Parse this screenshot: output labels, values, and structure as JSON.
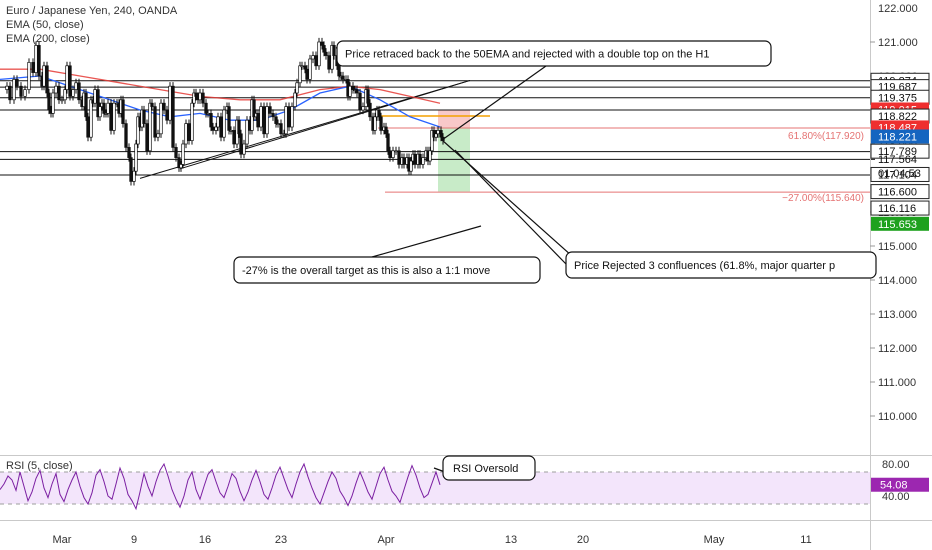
{
  "header": {
    "symbol": "Euro / Japanese Yen, 240, OANDA",
    "ema50": "EMA (50, close)",
    "ema200": "EMA (200, close)",
    "rsi": "RSI (5, close)"
  },
  "colors": {
    "ema50": "#2962ff",
    "ema200": "#e53935",
    "rsi_line": "#7b1fa2",
    "rsi_band": "#f3e5fb",
    "fib": "#e57373",
    "stop_zone": "#f8c9c9",
    "target_zone": "#c8ebc8",
    "entry": "#f4a100",
    "tag_red": "#ef2f2f",
    "tag_blue": "#1565c0",
    "tag_green": "#1ea11e",
    "tag_purple": "#9c27b0"
  },
  "chart_data": [
    {
      "type": "candlestick",
      "title": "Euro / Japanese Yen, 240, OANDA",
      "ylim": [
        109.1,
        122.2
      ],
      "y_ticks": [
        "122.000",
        "121.000",
        "120.000",
        "119.000",
        "118.000",
        "117.000",
        "116.000",
        "115.000",
        "114.000",
        "113.000",
        "112.000",
        "111.000",
        "110.000"
      ],
      "x_ticks": [
        "Mar",
        "9",
        "16",
        "23",
        "Apr",
        "13",
        "20",
        "May",
        "11"
      ],
      "price_path": [
        [
          0,
          119.6
        ],
        [
          7,
          119.7
        ],
        [
          10,
          119.3
        ],
        [
          14,
          119.9
        ],
        [
          17,
          119.7
        ],
        [
          21,
          119.4
        ],
        [
          25,
          119.6
        ],
        [
          29,
          120.4
        ],
        [
          33,
          120.1
        ],
        [
          36,
          120.9
        ],
        [
          39,
          120.0
        ],
        [
          42,
          119.7
        ],
        [
          44,
          120.3
        ],
        [
          47,
          119.5
        ],
        [
          49,
          119.0
        ],
        [
          51,
          118.9
        ],
        [
          53,
          119.5
        ],
        [
          56,
          119.7
        ],
        [
          59,
          119.3
        ],
        [
          62,
          119.3
        ],
        [
          65,
          119.6
        ],
        [
          67,
          120.3
        ],
        [
          70,
          119.4
        ],
        [
          73,
          119.6
        ],
        [
          76,
          119.8
        ],
        [
          79,
          119.3
        ],
        [
          82,
          119.1
        ],
        [
          84,
          119.5
        ],
        [
          86,
          118.8
        ],
        [
          88,
          118.2
        ],
        [
          91,
          119.3
        ],
        [
          93,
          119.2
        ],
        [
          95,
          119.6
        ],
        [
          98,
          118.8
        ],
        [
          100,
          119.1
        ],
        [
          102,
          119.2
        ],
        [
          104,
          118.9
        ],
        [
          106,
          118.9
        ],
        [
          108,
          119.2
        ],
        [
          111,
          118.4
        ],
        [
          114,
          119.2
        ],
        [
          117,
          119.2
        ],
        [
          119,
          118.9
        ],
        [
          121,
          119.3
        ],
        [
          123,
          118.6
        ],
        [
          126,
          117.9
        ],
        [
          129,
          117.6
        ],
        [
          131,
          116.9
        ],
        [
          134,
          117.2
        ],
        [
          136,
          118.0
        ],
        [
          138,
          118.8
        ],
        [
          140,
          118.5
        ],
        [
          142,
          119.0
        ],
        [
          144,
          118.6
        ],
        [
          147,
          117.8
        ],
        [
          150,
          119.2
        ],
        [
          152,
          119.1
        ],
        [
          155,
          118.2
        ],
        [
          158,
          118.3
        ],
        [
          161,
          119.2
        ],
        [
          164,
          119.0
        ],
        [
          167,
          118.7
        ],
        [
          170,
          119.7
        ],
        [
          173,
          117.9
        ],
        [
          176,
          117.6
        ],
        [
          179,
          117.3
        ],
        [
          181,
          117.4
        ],
        [
          183,
          118.0
        ],
        [
          186,
          118.6
        ],
        [
          189,
          118.1
        ],
        [
          192,
          119.2
        ],
        [
          194,
          119.5
        ],
        [
          196,
          119.4
        ],
        [
          198,
          119.3
        ],
        [
          200,
          119.5
        ],
        [
          203,
          119.2
        ],
        [
          206,
          118.9
        ],
        [
          208,
          118.9
        ],
        [
          211,
          118.5
        ],
        [
          213,
          118.4
        ],
        [
          216,
          118.5
        ],
        [
          218,
          118.8
        ],
        [
          221,
          118.2
        ],
        [
          224,
          119.0
        ],
        [
          227,
          119.1
        ],
        [
          229,
          118.4
        ],
        [
          231,
          118.4
        ],
        [
          234,
          118.0
        ],
        [
          237,
          118.7
        ],
        [
          239,
          118.3
        ],
        [
          241,
          117.7
        ],
        [
          244,
          118.0
        ],
        [
          247,
          118.7
        ],
        [
          250,
          118.4
        ],
        [
          252,
          119.3
        ],
        [
          254,
          118.8
        ],
        [
          256,
          118.9
        ],
        [
          258,
          118.5
        ],
        [
          261,
          119.1
        ],
        [
          264,
          118.3
        ],
        [
          267,
          119.1
        ],
        [
          270,
          118.9
        ],
        [
          273,
          118.8
        ],
        [
          276,
          118.6
        ],
        [
          278,
          118.6
        ],
        [
          281,
          118.3
        ],
        [
          284,
          118.3
        ],
        [
          286,
          119.1
        ],
        [
          289,
          118.5
        ],
        [
          292,
          119.1
        ],
        [
          295,
          119.5
        ],
        [
          297,
          119.8
        ],
        [
          300,
          120.3
        ],
        [
          302,
          120.3
        ],
        [
          305,
          120.2
        ],
        [
          307,
          119.9
        ],
        [
          310,
          120.5
        ],
        [
          313,
          120.6
        ],
        [
          316,
          120.3
        ],
        [
          319,
          121.0
        ],
        [
          322,
          120.9
        ],
        [
          324,
          120.7
        ],
        [
          326,
          120.6
        ],
        [
          329,
          120.2
        ],
        [
          332,
          120.9
        ],
        [
          334,
          120.6
        ],
        [
          337,
          120.3
        ],
        [
          339,
          120.0
        ],
        [
          341,
          120.0
        ],
        [
          343,
          119.9
        ],
        [
          346,
          119.9
        ],
        [
          348,
          119.4
        ],
        [
          350,
          119.7
        ],
        [
          353,
          119.6
        ],
        [
          355,
          119.6
        ],
        [
          357,
          119.5
        ],
        [
          360,
          119.0
        ],
        [
          363,
          119.1
        ],
        [
          366,
          119.6
        ],
        [
          368,
          119.2
        ],
        [
          370,
          118.8
        ],
        [
          373,
          118.4
        ],
        [
          375,
          118.8
        ],
        [
          377,
          119.0
        ],
        [
          379,
          118.8
        ],
        [
          381,
          118.4
        ],
        [
          384,
          118.5
        ],
        [
          386,
          118.3
        ],
        [
          388,
          117.8
        ],
        [
          390,
          117.6
        ],
        [
          393,
          117.8
        ],
        [
          396,
          117.8
        ],
        [
          399,
          117.4
        ],
        [
          402,
          117.6
        ],
        [
          404,
          117.4
        ],
        [
          407,
          117.6
        ],
        [
          409,
          117.2
        ],
        [
          411,
          117.5
        ],
        [
          413,
          117.7
        ],
        [
          415,
          117.4
        ],
        [
          418,
          117.7
        ],
        [
          420,
          117.4
        ],
        [
          423,
          117.6
        ],
        [
          426,
          117.8
        ],
        [
          428,
          117.5
        ],
        [
          430,
          117.8
        ],
        [
          432,
          118.4
        ],
        [
          434,
          118.2
        ],
        [
          436,
          118.3
        ],
        [
          438,
          118.4
        ],
        [
          441,
          118.2
        ],
        [
          443,
          118.1
        ]
      ],
      "ema50_path": [
        [
          0,
          119.9
        ],
        [
          40,
          120.0
        ],
        [
          70,
          119.7
        ],
        [
          110,
          119.3
        ],
        [
          140,
          119.0
        ],
        [
          170,
          118.8
        ],
        [
          200,
          118.9
        ],
        [
          230,
          118.7
        ],
        [
          260,
          118.7
        ],
        [
          290,
          119.0
        ],
        [
          320,
          119.5
        ],
        [
          350,
          119.7
        ],
        [
          380,
          119.3
        ],
        [
          410,
          118.8
        ],
        [
          440,
          118.5
        ]
      ],
      "ema200_path": [
        [
          0,
          120.2
        ],
        [
          40,
          120.2
        ],
        [
          80,
          120.0
        ],
        [
          120,
          119.8
        ],
        [
          160,
          119.6
        ],
        [
          200,
          119.4
        ],
        [
          240,
          119.3
        ],
        [
          280,
          119.3
        ],
        [
          320,
          119.6
        ],
        [
          350,
          119.7
        ],
        [
          380,
          119.6
        ],
        [
          410,
          119.4
        ],
        [
          440,
          119.2
        ]
      ],
      "support_resistance_lines": [
        119.874,
        119.687,
        119.375,
        119.015,
        117.789,
        117.564,
        117.104
      ],
      "last_price": "117.564",
      "countdown": "01:04:53",
      "fib_levels": [
        {
          "label": "61.80%(117.920)",
          "price": 118.487
        },
        {
          "label": "−27.00%(115.640)",
          "price": 116.6
        }
      ],
      "price_tags": [
        {
          "text": "119.874",
          "style": "plain",
          "price": 119.874
        },
        {
          "text": "119.687",
          "style": "plain",
          "price": 119.687
        },
        {
          "text": "119.375",
          "style": "plain",
          "price": 119.375
        },
        {
          "text": "119.015",
          "style": "red",
          "price": 119.015
        },
        {
          "text": "118.822",
          "style": "plain",
          "price": 118.822
        },
        {
          "text": "118.487",
          "style": "red",
          "price": 118.487
        },
        {
          "text": "118.221",
          "style": "blue",
          "price": 118.221
        },
        {
          "text": "117.789",
          "style": "plain",
          "price": 117.789
        },
        {
          "text": "117.104",
          "style": "plain",
          "price": 117.104
        },
        {
          "text": "116.600",
          "style": "plain",
          "price": 116.6
        },
        {
          "text": "116.116",
          "style": "plain",
          "price": 116.116
        },
        {
          "text": "115.653",
          "style": "green",
          "price": 115.653
        }
      ],
      "trade": {
        "entry": 118.822,
        "stop_top": 119.015,
        "stop_bottom": 118.487,
        "target_top": 118.487,
        "target_bottom": 116.6
      },
      "annotations": [
        "Price retraced back to the 50EMA and rejected with a double top on the H1",
        "Price Rejected 3 confluences (61.8%, major quarter p",
        "-27% is the overall target as this is also a 1:1 move"
      ]
    },
    {
      "type": "line",
      "title": "RSI (5, close)",
      "ylim": [
        20,
        90
      ],
      "y_ticks": [
        "80.00",
        "40.00"
      ],
      "band": [
        70,
        30
      ],
      "last_value": "54.08",
      "annotation": "RSI Oversold",
      "values": [
        48,
        55,
        65,
        60,
        47,
        70,
        52,
        34,
        45,
        62,
        72,
        50,
        38,
        55,
        68,
        42,
        33,
        48,
        60,
        70,
        52,
        38,
        30,
        44,
        66,
        73,
        58,
        40,
        36,
        55,
        75,
        62,
        42,
        34,
        24,
        45,
        68,
        52,
        40,
        58,
        72,
        80,
        65,
        48,
        36,
        26,
        40,
        60,
        70,
        48,
        36,
        52,
        67,
        73,
        58,
        44,
        38,
        52,
        68,
        62,
        46,
        34,
        45,
        60,
        72,
        58,
        42,
        36,
        50,
        66,
        76,
        62,
        48,
        38,
        55,
        70,
        80,
        64,
        50,
        38,
        30,
        44,
        58,
        70,
        62,
        46,
        38,
        28,
        40,
        56,
        70,
        58,
        45,
        36,
        52,
        68,
        76,
        60,
        46,
        40,
        32,
        48,
        64,
        78,
        66,
        50,
        38,
        42,
        56,
        70,
        54
      ]
    }
  ]
}
